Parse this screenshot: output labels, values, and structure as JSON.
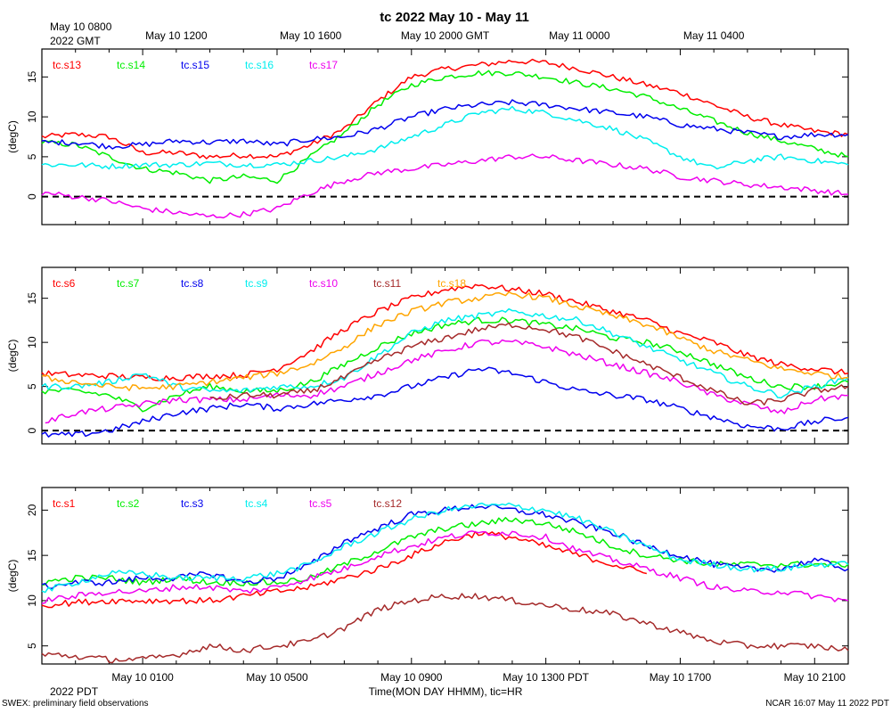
{
  "title": "tc 2022 May 10 - May 11",
  "top_axis": {
    "first_label_line1": "May 10 0800",
    "first_label_line2": "2022 GMT",
    "labels": [
      "May 10 1200",
      "May 10 1600",
      "May 10 2000 GMT",
      "May 11 0000",
      "May 11 0400"
    ]
  },
  "bottom_axis": {
    "labels": [
      "May 10 0100",
      "May 10 0500",
      "May 10 0900",
      "May 10 1300 PDT",
      "May 10 1700",
      "May 10 2100"
    ],
    "year_label": "2022 PDT",
    "xlabel": "Time(MON DAY HHMM), tic=HR"
  },
  "footer": {
    "left": "SWEX: preliminary field observations",
    "right": "NCAR 16:07 May 11 2022 PDT"
  },
  "chart_data": [
    {
      "type": "line",
      "ylabel": "(degC)",
      "ylim": [
        -3.5,
        18.5
      ],
      "yticks": [
        0,
        5,
        10,
        15
      ],
      "xlim_hours_pdt": [
        22.0,
        46.0
      ],
      "reference_line": 0,
      "series": [
        {
          "name": "tc.s13",
          "color": "#ff0000",
          "x": [
            22,
            23,
            24,
            25,
            26,
            27,
            28,
            29,
            30,
            31,
            32,
            33,
            34,
            35,
            36,
            37,
            38,
            39,
            40,
            41,
            42,
            43,
            44,
            45,
            46
          ],
          "values": [
            7.5,
            7.8,
            7.5,
            5.5,
            5.5,
            5.0,
            5.2,
            5.0,
            6.5,
            8.5,
            12.0,
            15.0,
            16.0,
            16.5,
            17.0,
            16.8,
            16.0,
            15.0,
            14.0,
            13.0,
            11.5,
            10.0,
            9.0,
            8.2,
            7.8
          ]
        },
        {
          "name": "tc.s14",
          "color": "#00ee00",
          "x": [
            22,
            23,
            24,
            25,
            26,
            27,
            28,
            29,
            30,
            31,
            32,
            33,
            34,
            35,
            36,
            37,
            38,
            39,
            40,
            41,
            42,
            43,
            44,
            45,
            46
          ],
          "values": [
            6.8,
            6.5,
            5.0,
            3.5,
            3.0,
            2.0,
            2.5,
            2.0,
            5.0,
            8.0,
            11.5,
            14.0,
            15.0,
            15.5,
            15.5,
            15.0,
            14.2,
            13.5,
            12.5,
            11.0,
            9.5,
            8.0,
            7.0,
            6.0,
            5.0
          ]
        },
        {
          "name": "tc.s15",
          "color": "#0000ee",
          "x": [
            22,
            23,
            24,
            25,
            26,
            27,
            28,
            29,
            30,
            31,
            32,
            33,
            34,
            35,
            36,
            37,
            38,
            39,
            40,
            41,
            42,
            43,
            44,
            45,
            46
          ],
          "values": [
            6.8,
            6.8,
            6.3,
            6.5,
            7.0,
            6.8,
            7.0,
            6.5,
            7.2,
            7.5,
            8.5,
            10.0,
            11.0,
            11.5,
            11.8,
            11.5,
            11.0,
            10.5,
            10.0,
            9.0,
            8.5,
            8.0,
            7.5,
            7.8,
            7.8
          ]
        },
        {
          "name": "tc.s16",
          "color": "#00eeee",
          "x": [
            22,
            23,
            24,
            25,
            26,
            27,
            28,
            29,
            30,
            31,
            32,
            33,
            34,
            35,
            36,
            37,
            38,
            39,
            40,
            41,
            42,
            43,
            44,
            45,
            46
          ],
          "values": [
            4.0,
            4.0,
            3.8,
            4.0,
            4.0,
            4.2,
            4.0,
            4.0,
            4.5,
            5.0,
            6.0,
            7.5,
            9.0,
            10.5,
            11.0,
            10.5,
            9.5,
            8.5,
            7.0,
            5.0,
            3.5,
            4.5,
            5.0,
            4.5,
            4.0
          ]
        },
        {
          "name": "tc.s17",
          "color": "#ee00ee",
          "x": [
            22,
            23,
            24,
            25,
            26,
            27,
            28,
            29,
            30,
            31,
            32,
            33,
            34,
            35,
            36,
            37,
            38,
            39,
            40,
            41,
            42,
            43,
            44,
            45,
            46
          ],
          "values": [
            0.5,
            0.0,
            -0.5,
            -1.5,
            -2.0,
            -2.5,
            -2.2,
            -1.5,
            0.5,
            2.0,
            3.0,
            3.5,
            4.0,
            4.5,
            5.0,
            5.0,
            4.5,
            4.0,
            3.5,
            2.5,
            2.0,
            1.5,
            1.2,
            0.8,
            0.3
          ]
        }
      ]
    },
    {
      "type": "line",
      "ylabel": "(degC)",
      "ylim": [
        -1.5,
        18.5
      ],
      "yticks": [
        0,
        5,
        10,
        15
      ],
      "xlim_hours_pdt": [
        22.0,
        46.0
      ],
      "reference_line": 0,
      "series": [
        {
          "name": "tc.s6",
          "color": "#ff0000",
          "x": [
            22,
            23,
            24,
            25,
            26,
            27,
            28,
            29,
            30,
            31,
            32,
            33,
            34,
            35,
            36,
            37,
            38,
            39,
            40,
            41,
            42,
            43,
            44,
            45,
            46
          ],
          "values": [
            6.5,
            6.3,
            6.2,
            6.0,
            6.0,
            6.2,
            6.3,
            7.0,
            9.0,
            11.5,
            13.5,
            15.0,
            16.0,
            16.5,
            16.0,
            15.5,
            14.5,
            13.5,
            12.5,
            11.0,
            10.0,
            8.5,
            7.5,
            7.0,
            6.5
          ]
        },
        {
          "name": "tc.s7",
          "color": "#00ee00",
          "x": [
            22,
            23,
            24,
            25,
            26,
            27,
            28,
            29,
            30,
            31,
            32,
            33,
            34,
            35,
            36,
            37,
            38,
            39,
            40,
            41,
            42,
            43,
            44,
            45,
            46
          ],
          "values": [
            4.5,
            4.5,
            4.0,
            2.5,
            4.0,
            5.0,
            4.5,
            4.5,
            5.5,
            7.5,
            9.5,
            11.0,
            12.0,
            12.5,
            12.5,
            12.0,
            11.5,
            10.5,
            10.0,
            9.0,
            7.5,
            6.0,
            5.0,
            5.0,
            5.5
          ]
        },
        {
          "name": "tc.s8",
          "color": "#0000ee",
          "x": [
            22,
            23,
            24,
            25,
            26,
            27,
            28,
            29,
            30,
            31,
            32,
            33,
            34,
            35,
            36,
            37,
            38,
            39,
            40,
            41,
            42,
            43,
            44,
            45,
            46
          ],
          "values": [
            -0.5,
            -0.5,
            0.0,
            1.0,
            2.0,
            2.5,
            3.0,
            2.5,
            3.0,
            3.5,
            4.0,
            5.0,
            6.0,
            7.0,
            6.5,
            5.5,
            4.5,
            4.0,
            3.5,
            2.5,
            1.5,
            0.5,
            0.2,
            1.0,
            1.5
          ]
        },
        {
          "name": "tc.s9",
          "color": "#00eeee",
          "x": [
            22,
            23,
            24,
            25,
            26,
            27,
            28,
            29,
            30,
            31,
            32,
            33,
            34,
            35,
            36,
            37,
            38,
            39,
            40,
            41,
            42,
            43,
            44,
            45,
            46
          ],
          "values": [
            5.0,
            5.0,
            5.5,
            6.5,
            5.0,
            4.5,
            4.5,
            5.0,
            5.0,
            6.0,
            8.5,
            11.0,
            12.5,
            13.0,
            13.5,
            13.0,
            12.5,
            11.0,
            9.5,
            8.0,
            6.5,
            5.0,
            4.0,
            5.0,
            6.0
          ]
        },
        {
          "name": "tc.s10",
          "color": "#ee00ee",
          "x": [
            22.1,
            23,
            24,
            25,
            26,
            27,
            28,
            29,
            30,
            31,
            32,
            33,
            34,
            35,
            36,
            37,
            38,
            39,
            40,
            41,
            42,
            43,
            44,
            45,
            46
          ],
          "values": [
            1.0,
            2.0,
            2.5,
            3.0,
            3.5,
            3.5,
            3.5,
            4.0,
            4.0,
            5.0,
            6.5,
            8.0,
            9.0,
            10.0,
            10.0,
            9.5,
            8.5,
            7.5,
            6.5,
            5.5,
            4.0,
            3.0,
            2.0,
            3.5,
            4.0
          ]
        },
        {
          "name": "tc.s11",
          "color": "#a52a2a",
          "x": [
            27,
            28,
            29,
            30,
            31,
            32,
            33,
            34,
            35,
            36,
            37,
            38,
            39,
            40,
            41,
            42,
            43,
            44,
            45,
            46
          ],
          "values": [
            3.5,
            4.0,
            4.0,
            4.5,
            6.0,
            8.0,
            9.5,
            10.5,
            11.5,
            12.0,
            11.5,
            10.5,
            9.0,
            7.5,
            6.0,
            4.5,
            3.0,
            3.5,
            4.5,
            5.0
          ]
        },
        {
          "name": "tc.s18",
          "color": "#ffa500",
          "x": [
            22,
            23,
            24,
            25,
            26,
            27,
            28,
            29,
            30,
            31,
            32,
            33,
            34,
            35,
            36,
            37,
            38,
            39,
            40,
            41,
            42,
            43,
            44,
            45,
            46
          ],
          "values": [
            6.0,
            5.5,
            5.0,
            4.8,
            5.0,
            5.5,
            6.0,
            6.5,
            7.5,
            9.5,
            12.0,
            13.5,
            14.5,
            15.0,
            15.5,
            15.0,
            14.0,
            13.0,
            12.0,
            10.5,
            9.0,
            8.0,
            7.0,
            6.5,
            6.0
          ]
        }
      ]
    },
    {
      "type": "line",
      "ylabel": "(degC)",
      "ylim": [
        3.0,
        22.5
      ],
      "yticks": [
        5,
        10,
        15,
        20
      ],
      "xlim_hours_pdt": [
        22.0,
        46.0
      ],
      "series": [
        {
          "name": "tc.s1",
          "color": "#ff0000",
          "x": [
            22,
            23,
            24,
            25,
            26,
            27,
            28,
            29,
            30,
            31,
            32,
            33,
            34,
            35,
            36,
            37,
            38,
            39,
            40
          ],
          "values": [
            9.5,
            9.8,
            10.0,
            10.0,
            10.0,
            10.0,
            10.5,
            11.0,
            11.5,
            12.5,
            13.5,
            15.0,
            16.5,
            17.5,
            17.0,
            16.0,
            15.0,
            14.0,
            13.0
          ]
        },
        {
          "name": "tc.s2",
          "color": "#00ee00",
          "x": [
            22,
            23,
            24,
            25,
            26,
            27,
            28,
            29,
            30,
            31,
            32,
            33,
            34,
            35,
            36,
            37,
            38,
            39,
            40,
            41,
            42,
            43,
            44,
            45,
            46
          ],
          "values": [
            12.0,
            12.5,
            12.5,
            12.0,
            12.5,
            12.0,
            12.0,
            12.0,
            12.5,
            14.0,
            15.5,
            17.0,
            18.0,
            18.5,
            19.0,
            18.5,
            17.5,
            16.0,
            15.0,
            14.5,
            14.0,
            14.0,
            14.0,
            14.0,
            14.0
          ]
        },
        {
          "name": "tc.s3",
          "color": "#0000ee",
          "x": [
            22,
            23,
            24,
            25,
            26,
            27,
            28,
            29,
            30,
            31,
            32,
            33,
            34,
            35,
            36,
            37,
            38,
            39,
            40,
            41,
            42,
            43,
            44,
            45,
            46
          ],
          "values": [
            11.5,
            12.0,
            12.0,
            12.5,
            12.5,
            13.0,
            12.0,
            12.5,
            14.0,
            16.5,
            18.0,
            19.5,
            20.0,
            20.5,
            20.0,
            19.5,
            18.5,
            17.5,
            16.0,
            15.0,
            14.0,
            13.5,
            13.5,
            14.5,
            13.5
          ]
        },
        {
          "name": "tc.s4",
          "color": "#00eeee",
          "x": [
            22,
            23,
            24,
            25,
            26,
            27,
            28,
            29,
            30,
            31,
            32,
            33,
            34,
            35,
            36,
            37,
            38,
            39,
            40,
            41,
            42,
            43,
            44,
            45,
            46
          ],
          "values": [
            11.0,
            12.0,
            13.0,
            13.0,
            12.5,
            12.5,
            12.5,
            13.0,
            14.0,
            16.0,
            17.5,
            19.0,
            20.0,
            20.5,
            20.5,
            20.0,
            19.0,
            17.5,
            16.0,
            14.5,
            14.0,
            13.5,
            13.5,
            14.0,
            14.0
          ]
        },
        {
          "name": "tc.s5",
          "color": "#ee00ee",
          "x": [
            22,
            23,
            24,
            25,
            26,
            27,
            28,
            29,
            30,
            31,
            32,
            33,
            34,
            35,
            36,
            37,
            38,
            39,
            40,
            41,
            42,
            43,
            44,
            45,
            46
          ],
          "values": [
            10.0,
            10.5,
            11.0,
            11.0,
            11.5,
            11.5,
            11.0,
            11.5,
            12.5,
            13.5,
            15.0,
            16.0,
            17.0,
            17.5,
            17.5,
            17.0,
            15.5,
            14.5,
            13.5,
            12.5,
            11.5,
            11.0,
            11.0,
            10.5,
            10.0
          ]
        },
        {
          "name": "tc.s12",
          "color": "#a52a2a",
          "x": [
            22,
            22.5,
            24,
            25,
            26,
            27,
            28,
            29,
            30,
            31,
            32,
            33,
            34,
            35,
            36,
            37,
            38,
            39,
            40,
            41,
            42,
            43,
            44,
            45,
            46
          ],
          "values": [
            4.0,
            4.0,
            3.5,
            3.5,
            4.0,
            5.0,
            4.5,
            5.0,
            5.5,
            7.0,
            9.0,
            10.0,
            10.5,
            10.5,
            10.0,
            9.5,
            9.0,
            8.5,
            7.5,
            6.5,
            5.5,
            5.0,
            5.0,
            5.0,
            4.5
          ]
        }
      ]
    }
  ]
}
